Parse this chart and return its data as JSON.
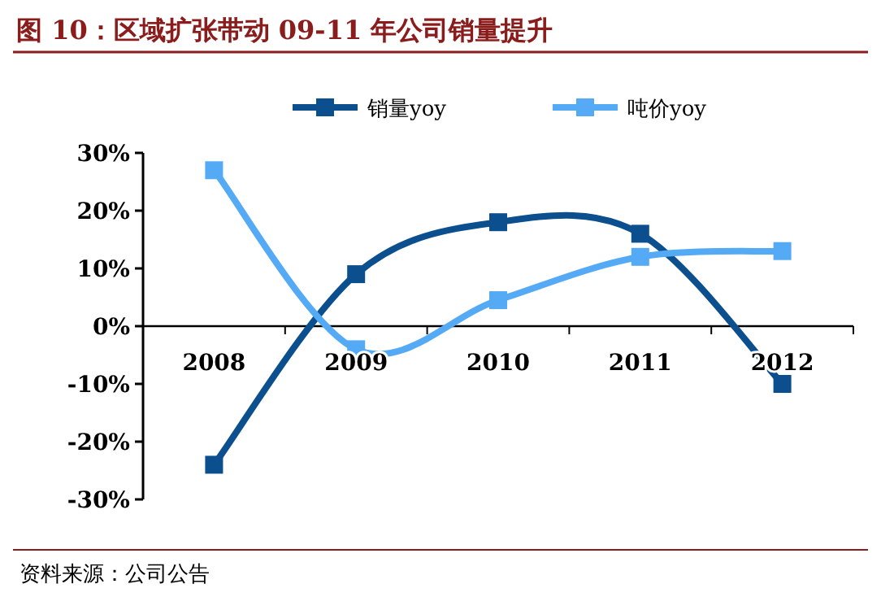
{
  "chart_data": {
    "type": "line",
    "title": "图 10：区域扩张带动 09-11 年公司销量提升",
    "categories": [
      "2008",
      "2009",
      "2010",
      "2011",
      "2012"
    ],
    "series": [
      {
        "name": "销量yoy",
        "color": "#0b4f8e",
        "values": [
          -24,
          9,
          18,
          16,
          -10
        ]
      },
      {
        "name": "吨价yoy",
        "color": "#55aaf5",
        "values": [
          27,
          -4,
          4.5,
          12,
          13
        ]
      }
    ],
    "ylim": [
      -30,
      30
    ],
    "yticks": [
      {
        "value": -30,
        "label": "-30%"
      },
      {
        "value": -20,
        "label": "-20%"
      },
      {
        "value": -10,
        "label": "-10%"
      },
      {
        "value": 0,
        "label": "0%"
      },
      {
        "value": 10,
        "label": "10%"
      },
      {
        "value": 20,
        "label": "20%"
      },
      {
        "value": 30,
        "label": "30%"
      }
    ],
    "marker": "square",
    "legend": "top",
    "grid": false,
    "annotations": [
      "资料来源：公司公告"
    ]
  }
}
